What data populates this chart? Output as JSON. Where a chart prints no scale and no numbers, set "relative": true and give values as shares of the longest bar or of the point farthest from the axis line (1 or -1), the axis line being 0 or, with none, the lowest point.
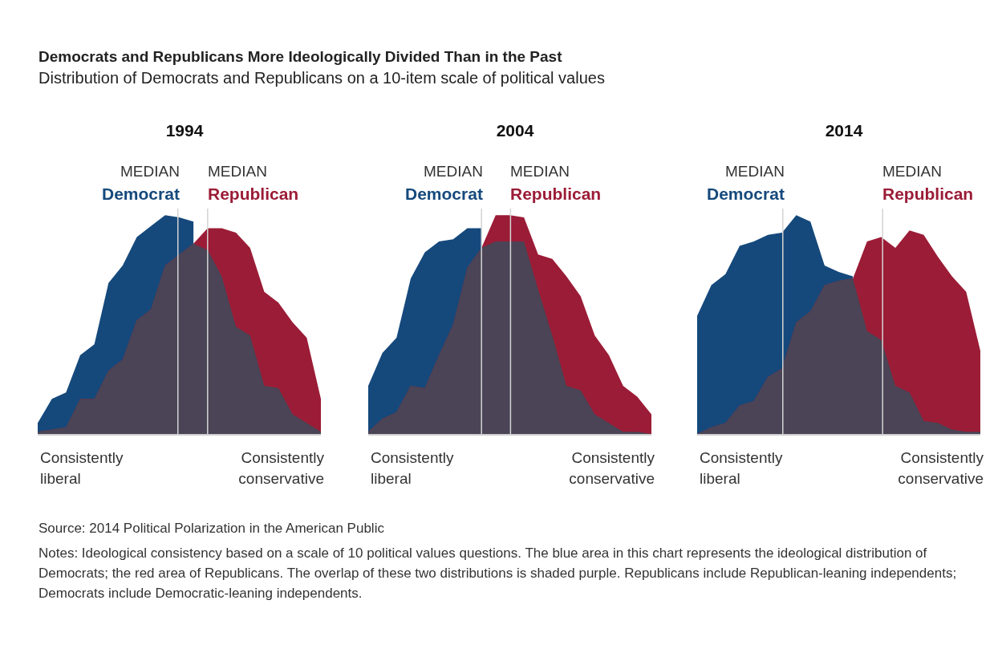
{
  "chart_data": [
    {
      "type": "other",
      "title": "Democrats and Republicans More Ideologically Divided Than in the Past",
      "subtitle": "Distribution of Democrats and Republicans on a 10-item scale of political values"
    },
    {
      "type": "area",
      "title": "1994",
      "relative": true,
      "categories": [
        null,
        null,
        null,
        null,
        null,
        null,
        null,
        null,
        null,
        null,
        null,
        null,
        null,
        null,
        null,
        null,
        null,
        null,
        null,
        null,
        null
      ],
      "series": [
        {
          "name": "Democrat",
          "color": "#15497c",
          "values": [
            0.05,
            0.16,
            0.19,
            0.36,
            0.41,
            0.69,
            0.77,
            0.9,
            0.95,
            1,
            0.99,
            0.97,
            null,
            null,
            null,
            null,
            null,
            null,
            null,
            null,
            null
          ]
        },
        {
          "name": "Republican",
          "color": "#9b1c36",
          "values": [
            0.01,
            0.02,
            0.03,
            0.16,
            0.16,
            0.29,
            0.34,
            0.52,
            0.57,
            0.77,
            0.82,
            0.87,
            0.94,
            0.94,
            0.92,
            0.85,
            0.65,
            0.6,
            0.51,
            0.44,
            0.16
          ]
        },
        {
          "color": "#4a4456",
          "values": [
            0.01,
            0.02,
            0.03,
            0.16,
            0.16,
            0.29,
            0.34,
            0.52,
            0.57,
            0.77,
            0.82,
            0.87,
            0.84,
            0.72,
            0.49,
            0.45,
            0.22,
            0.21,
            0.09,
            0.05,
            0.01
          ]
        }
      ],
      "ref_lines": [
        {
          "axis": "x",
          "label": "MEDIAN",
          "color": "#d4d4d4"
        },
        {
          "axis": "x",
          "label": "MEDIAN",
          "color": "#d4d4d4"
        }
      ],
      "annotations": [
        "Consistently liberal",
        "Consistently conservative"
      ]
    },
    {
      "type": "area",
      "title": "2004",
      "relative": true,
      "categories": [
        null,
        null,
        null,
        null,
        null,
        null,
        null,
        null,
        null,
        null,
        null,
        null,
        null,
        null,
        null,
        null,
        null,
        null,
        null,
        null,
        null
      ],
      "series": [
        {
          "name": "Democrat",
          "color": "#15497c",
          "values": [
            0.22,
            0.37,
            0.44,
            0.71,
            0.83,
            0.88,
            0.89,
            0.94,
            0.94,
            null,
            null,
            null,
            null,
            null,
            null,
            null,
            null,
            null,
            null,
            null,
            null
          ]
        },
        {
          "name": "Republican",
          "color": "#9b1c36",
          "values": [
            0.01,
            0.07,
            0.1,
            0.22,
            0.21,
            0.36,
            0.5,
            0.76,
            0.85,
            1,
            1,
            0.99,
            0.82,
            0.8,
            0.72,
            0.63,
            0.45,
            0.36,
            0.22,
            0.17,
            0.09
          ]
        },
        {
          "color": "#4a4456",
          "values": [
            0.01,
            0.07,
            0.1,
            0.22,
            0.21,
            0.36,
            0.5,
            0.76,
            0.85,
            0.88,
            0.88,
            0.88,
            0.66,
            0.45,
            0.22,
            0.2,
            0.09,
            0.05,
            0.01,
            0.01,
            0
          ]
        }
      ],
      "ref_lines": [
        {
          "axis": "x",
          "label": "MEDIAN",
          "color": "#d4d4d4"
        },
        {
          "axis": "x",
          "label": "MEDIAN",
          "color": "#d4d4d4"
        }
      ],
      "annotations": [
        "Consistently liberal",
        "Consistently conservative"
      ]
    },
    {
      "type": "area",
      "title": "2014",
      "relative": true,
      "categories": [
        null,
        null,
        null,
        null,
        null,
        null,
        null,
        null,
        null,
        null,
        null,
        null,
        null,
        null,
        null,
        null,
        null,
        null,
        null,
        null,
        null
      ],
      "series": [
        {
          "name": "Democrat",
          "color": "#15497c",
          "values": [
            0.54,
            0.68,
            0.73,
            0.86,
            0.88,
            0.91,
            0.92,
            1,
            0.97,
            0.77,
            0.74,
            0.72,
            null,
            null,
            null,
            null,
            null,
            null,
            null,
            null,
            null
          ]
        },
        {
          "name": "Republican",
          "color": "#9b1c36",
          "values": [
            0,
            0.03,
            0.05,
            0.13,
            0.15,
            0.26,
            0.3,
            0.51,
            0.56,
            0.68,
            0.7,
            0.71,
            0.88,
            0.9,
            0.85,
            0.93,
            0.91,
            0.81,
            0.72,
            0.65,
            0.38
          ]
        },
        {
          "color": "#4a4456",
          "values": [
            0,
            0.03,
            0.05,
            0.13,
            0.15,
            0.26,
            0.3,
            0.51,
            0.56,
            0.68,
            0.7,
            0.71,
            0.47,
            0.43,
            0.22,
            0.19,
            0.06,
            0.05,
            0.02,
            0.01,
            0.01
          ]
        }
      ],
      "ref_lines": [
        {
          "axis": "x",
          "label": "MEDIAN",
          "color": "#d4d4d4"
        },
        {
          "axis": "x",
          "label": "MEDIAN",
          "color": "#d4d4d4"
        }
      ],
      "annotations": [
        "Consistently liberal",
        "Consistently conservative"
      ]
    },
    {
      "type": "other",
      "annotations": [
        "Source: 2014 Political Polarization in the American Public",
        "Notes: Ideological consistency based on a scale of 10 political values questions. The blue area in this chart represents the ideological distribution of Democrats; the red area of Republicans. The overlap of these two distributions is shaded purple. Republicans include Republican-leaning independents; Democrats include Democratic-leaning independents."
      ]
    }
  ]
}
